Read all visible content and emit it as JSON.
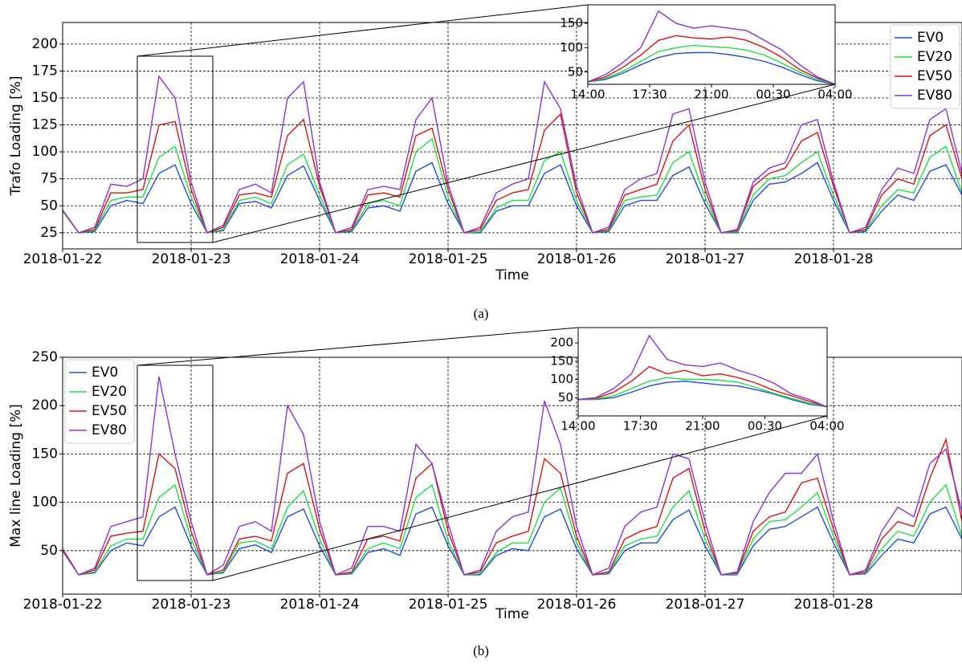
{
  "chart_data": [
    {
      "type": "line",
      "x_label": "Time",
      "y_label": "Trafo Loading [%]",
      "caption": "(a)",
      "grid": true,
      "legend": "upper right",
      "x": [
        0,
        0.125,
        0.25,
        0.375,
        0.5,
        0.625,
        0.75,
        0.875,
        1,
        1.125,
        1.25,
        1.375,
        1.5,
        1.625,
        1.75,
        1.875,
        2,
        2.125,
        2.25,
        2.375,
        2.5,
        2.625,
        2.75,
        2.875,
        3,
        3.125,
        3.25,
        3.375,
        3.5,
        3.625,
        3.75,
        3.875,
        4,
        4.125,
        4.25,
        4.375,
        4.5,
        4.625,
        4.75,
        4.875,
        5,
        5.125,
        5.25,
        5.375,
        5.5,
        5.625,
        5.75,
        5.875,
        6,
        6.125,
        6.25,
        6.375,
        6.5,
        6.625,
        6.75,
        6.875,
        7
      ],
      "xlim": [
        0,
        7
      ],
      "xticks": [
        {
          "value": 0,
          "label": "2018-01-22"
        },
        {
          "value": 1,
          "label": "2018-01-23"
        },
        {
          "value": 2,
          "label": "2018-01-24"
        },
        {
          "value": 3,
          "label": "2018-01-25"
        },
        {
          "value": 4,
          "label": "2018-01-26"
        },
        {
          "value": 5,
          "label": "2018-01-27"
        },
        {
          "value": 6,
          "label": "2018-01-28"
        }
      ],
      "ylim": [
        10,
        220
      ],
      "yticks": [
        25,
        50,
        75,
        100,
        125,
        150,
        175,
        200
      ],
      "series": [
        {
          "name": "EV0",
          "color": "#1f4fd8",
          "values": [
            45,
            25,
            26,
            50,
            55,
            52,
            80,
            88,
            52,
            25,
            27,
            52,
            54,
            48,
            78,
            87,
            55,
            25,
            26,
            48,
            50,
            45,
            82,
            90,
            52,
            25,
            25,
            45,
            50,
            50,
            80,
            88,
            50,
            25,
            26,
            50,
            55,
            55,
            78,
            86,
            52,
            25,
            25,
            55,
            70,
            72,
            80,
            90,
            55,
            25,
            26,
            45,
            60,
            55,
            82,
            88,
            60
          ]
        },
        {
          "name": "EV20",
          "color": "#22dd44",
          "values": [
            45,
            25,
            27,
            55,
            58,
            58,
            95,
            105,
            58,
            25,
            28,
            55,
            58,
            52,
            88,
            98,
            60,
            25,
            27,
            52,
            55,
            50,
            100,
            112,
            58,
            25,
            26,
            48,
            55,
            55,
            92,
            100,
            55,
            25,
            27,
            55,
            58,
            60,
            90,
            100,
            58,
            25,
            26,
            60,
            75,
            78,
            90,
            100,
            60,
            25,
            27,
            50,
            65,
            62,
            95,
            105,
            62
          ]
        },
        {
          "name": "EV50",
          "color": "#dd1111",
          "values": [
            46,
            25,
            28,
            62,
            62,
            65,
            125,
            128,
            65,
            25,
            30,
            60,
            62,
            58,
            115,
            130,
            68,
            25,
            28,
            60,
            62,
            58,
            115,
            122,
            65,
            25,
            28,
            55,
            62,
            65,
            120,
            135,
            62,
            25,
            28,
            60,
            65,
            70,
            110,
            125,
            65,
            25,
            27,
            68,
            80,
            85,
            110,
            118,
            68,
            25,
            28,
            60,
            75,
            70,
            115,
            125,
            75
          ]
        },
        {
          "name": "EV80",
          "color": "#8833dd",
          "values": [
            46,
            25,
            30,
            70,
            68,
            75,
            170,
            150,
            72,
            25,
            32,
            65,
            70,
            62,
            150,
            165,
            72,
            25,
            30,
            65,
            68,
            65,
            130,
            150,
            70,
            25,
            30,
            62,
            70,
            75,
            165,
            140,
            68,
            25,
            30,
            65,
            75,
            80,
            135,
            140,
            72,
            25,
            28,
            72,
            85,
            90,
            125,
            130,
            72,
            25,
            30,
            65,
            85,
            80,
            130,
            140,
            80
          ]
        }
      ]
    },
    {
      "type": "line",
      "grid": false,
      "x": [
        14,
        15,
        16,
        17,
        18,
        19,
        20,
        21,
        22,
        23,
        24,
        25,
        26,
        27,
        28
      ],
      "xlim": [
        14,
        28
      ],
      "xticks": [
        {
          "value": 14,
          "label": "14:00"
        },
        {
          "value": 17.5,
          "label": "17:30"
        },
        {
          "value": 21,
          "label": "21:00"
        },
        {
          "value": 24.5,
          "label": "00:30"
        },
        {
          "value": 28,
          "label": "04:00"
        }
      ],
      "ylim": [
        25,
        188
      ],
      "yticks": [
        50,
        100,
        150
      ],
      "series": [
        {
          "name": "EV0",
          "color": "#1f4fd8",
          "values": [
            30,
            35,
            48,
            65,
            80,
            88,
            90,
            90,
            86,
            80,
            72,
            60,
            45,
            32,
            25
          ]
        },
        {
          "name": "EV20",
          "color": "#22dd44",
          "values": [
            30,
            37,
            52,
            72,
            92,
            100,
            105,
            102,
            100,
            95,
            85,
            68,
            50,
            35,
            25
          ]
        },
        {
          "name": "EV50",
          "color": "#dd1111",
          "values": [
            30,
            40,
            60,
            85,
            115,
            125,
            120,
            118,
            122,
            115,
            100,
            80,
            55,
            38,
            25
          ]
        },
        {
          "name": "EV80",
          "color": "#8833dd",
          "values": [
            30,
            45,
            70,
            100,
            175,
            150,
            140,
            145,
            140,
            135,
            115,
            95,
            65,
            40,
            25
          ]
        }
      ]
    },
    {
      "type": "line",
      "x_label": "Time",
      "y_label": "Max line Loading [%]",
      "caption": "(b)",
      "grid": true,
      "legend": "upper left",
      "x": [
        0,
        0.125,
        0.25,
        0.375,
        0.5,
        0.625,
        0.75,
        0.875,
        1,
        1.125,
        1.25,
        1.375,
        1.5,
        1.625,
        1.75,
        1.875,
        2,
        2.125,
        2.25,
        2.375,
        2.5,
        2.625,
        2.75,
        2.875,
        3,
        3.125,
        3.25,
        3.375,
        3.5,
        3.625,
        3.75,
        3.875,
        4,
        4.125,
        4.25,
        4.375,
        4.5,
        4.625,
        4.75,
        4.875,
        5,
        5.125,
        5.25,
        5.375,
        5.5,
        5.625,
        5.75,
        5.875,
        6,
        6.125,
        6.25,
        6.375,
        6.5,
        6.625,
        6.75,
        6.875,
        7
      ],
      "xlim": [
        0,
        7
      ],
      "xticks": [
        {
          "value": 0,
          "label": "2018-01-22"
        },
        {
          "value": 1,
          "label": "2018-01-23"
        },
        {
          "value": 2,
          "label": "2018-01-24"
        },
        {
          "value": 3,
          "label": "2018-01-25"
        },
        {
          "value": 4,
          "label": "2018-01-26"
        },
        {
          "value": 5,
          "label": "2018-01-27"
        },
        {
          "value": 6,
          "label": "2018-01-28"
        }
      ],
      "ylim": [
        5,
        250
      ],
      "yticks": [
        50,
        100,
        150,
        200,
        250
      ],
      "series": [
        {
          "name": "EV0",
          "color": "#1f4fd8",
          "values": [
            50,
            25,
            27,
            50,
            58,
            55,
            85,
            95,
            55,
            25,
            27,
            52,
            56,
            48,
            85,
            93,
            55,
            25,
            26,
            48,
            52,
            45,
            88,
            95,
            55,
            25,
            25,
            45,
            52,
            50,
            85,
            93,
            52,
            25,
            26,
            50,
            58,
            58,
            82,
            92,
            55,
            25,
            25,
            55,
            72,
            75,
            85,
            95,
            58,
            25,
            26,
            45,
            62,
            58,
            88,
            95,
            62
          ]
        },
        {
          "name": "EV20",
          "color": "#22dd44",
          "values": [
            50,
            25,
            28,
            55,
            62,
            62,
            105,
            118,
            62,
            25,
            28,
            58,
            60,
            52,
            95,
            112,
            62,
            25,
            27,
            52,
            58,
            52,
            105,
            118,
            60,
            25,
            26,
            48,
            58,
            58,
            100,
            115,
            58,
            25,
            27,
            55,
            62,
            65,
            95,
            112,
            62,
            25,
            26,
            62,
            80,
            82,
            95,
            110,
            65,
            25,
            27,
            52,
            70,
            65,
            100,
            118,
            65
          ]
        },
        {
          "name": "EV50",
          "color": "#dd1111",
          "values": [
            50,
            25,
            30,
            65,
            68,
            70,
            150,
            135,
            70,
            25,
            30,
            62,
            65,
            60,
            130,
            140,
            72,
            25,
            28,
            62,
            65,
            60,
            125,
            140,
            70,
            25,
            28,
            58,
            65,
            70,
            145,
            130,
            65,
            25,
            28,
            62,
            70,
            75,
            125,
            135,
            70,
            25,
            27,
            70,
            85,
            90,
            120,
            125,
            72,
            25,
            28,
            62,
            80,
            75,
            125,
            165,
            80
          ]
        },
        {
          "name": "EV80",
          "color": "#8833dd",
          "values": [
            52,
            25,
            32,
            75,
            80,
            85,
            230,
            150,
            80,
            25,
            35,
            75,
            80,
            70,
            200,
            170,
            80,
            25,
            32,
            75,
            75,
            70,
            160,
            140,
            78,
            25,
            30,
            70,
            85,
            90,
            205,
            160,
            75,
            25,
            32,
            75,
            90,
            95,
            150,
            145,
            80,
            25,
            28,
            80,
            110,
            130,
            130,
            150,
            80,
            25,
            30,
            70,
            95,
            85,
            140,
            155,
            90
          ]
        }
      ]
    },
    {
      "type": "line",
      "grid": false,
      "x": [
        14,
        15,
        16,
        17,
        18,
        19,
        20,
        21,
        22,
        23,
        24,
        25,
        26,
        27,
        28
      ],
      "xlim": [
        14,
        28
      ],
      "xticks": [
        {
          "value": 14,
          "label": "14:00"
        },
        {
          "value": 17.5,
          "label": "17:30"
        },
        {
          "value": 21,
          "label": "21:00"
        },
        {
          "value": 24.5,
          "label": "00:30"
        },
        {
          "value": 28,
          "label": "04:00"
        }
      ],
      "ylim": [
        0,
        242
      ],
      "yticks": [
        50,
        100,
        150,
        200
      ],
      "series": [
        {
          "name": "EV0",
          "color": "#1f4fd8",
          "values": [
            45,
            45,
            50,
            65,
            82,
            92,
            95,
            90,
            85,
            82,
            72,
            60,
            45,
            32,
            25
          ]
        },
        {
          "name": "EV20",
          "color": "#22dd44",
          "values": [
            45,
            46,
            55,
            75,
            95,
            105,
            100,
            100,
            98,
            92,
            78,
            62,
            48,
            35,
            25
          ]
        },
        {
          "name": "EV50",
          "color": "#dd1111",
          "values": [
            45,
            48,
            65,
            95,
            135,
            115,
            125,
            110,
            115,
            105,
            90,
            70,
            55,
            40,
            25
          ]
        },
        {
          "name": "EV80",
          "color": "#8833dd",
          "values": [
            45,
            50,
            75,
            115,
            220,
            155,
            140,
            135,
            145,
            125,
            110,
            90,
            60,
            45,
            25
          ]
        }
      ]
    }
  ]
}
